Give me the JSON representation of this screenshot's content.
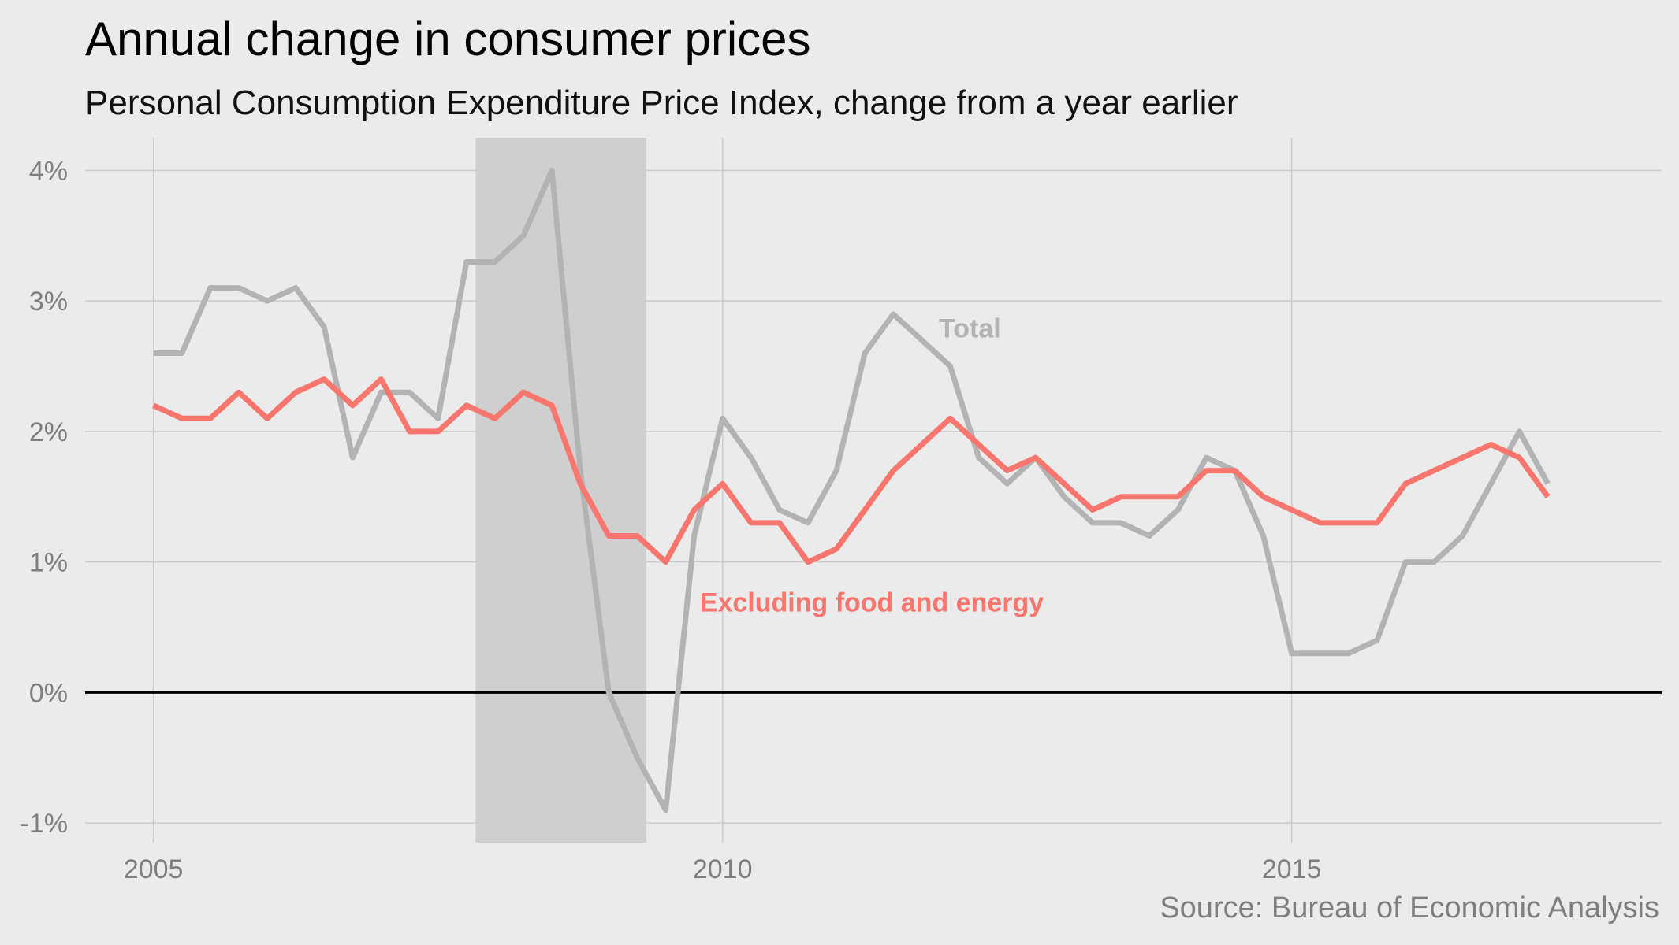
{
  "chart_data": {
    "type": "line",
    "title": "Annual change in consumer prices",
    "subtitle": "Personal Consumption Expenditure Price Index, change from a year earlier",
    "source": "Source: Bureau of Economic Analysis",
    "xlabel": "",
    "ylabel": "",
    "xlim": [
      2004.4,
      2018.25
    ],
    "ylim": [
      -1.15,
      4.25
    ],
    "x_ticks": [
      2005,
      2010,
      2015
    ],
    "x_tick_labels": [
      "2005",
      "2010",
      "2015"
    ],
    "y_ticks": [
      -1,
      0,
      1,
      2,
      3,
      4
    ],
    "y_tick_labels": [
      "-1%",
      "0%",
      "1%",
      "2%",
      "3%",
      "4%"
    ],
    "grid": true,
    "zero_line": true,
    "shaded_region": {
      "x0": 2007.83,
      "x1": 2009.33,
      "color": "#cfcfcf"
    },
    "x": [
      2005.0,
      2005.25,
      2005.5,
      2005.75,
      2006.0,
      2006.25,
      2006.5,
      2006.75,
      2007.0,
      2007.25,
      2007.5,
      2007.75,
      2008.0,
      2008.25,
      2008.5,
      2008.75,
      2009.0,
      2009.25,
      2009.5,
      2009.75,
      2010.0,
      2010.25,
      2010.5,
      2010.75,
      2011.0,
      2011.25,
      2011.5,
      2011.75,
      2012.0,
      2012.25,
      2012.5,
      2012.75,
      2013.0,
      2013.25,
      2013.5,
      2013.75,
      2014.0,
      2014.25,
      2014.5,
      2014.75,
      2015.0,
      2015.25,
      2015.5,
      2015.75,
      2016.0,
      2016.25,
      2016.5,
      2016.75,
      2017.0,
      2017.25
    ],
    "series": [
      {
        "name": "Total",
        "color": "#b3b3b3",
        "values": [
          2.6,
          2.6,
          3.1,
          3.1,
          3.0,
          3.1,
          2.8,
          1.8,
          2.3,
          2.3,
          2.1,
          3.3,
          3.3,
          3.5,
          4.0,
          1.7,
          0.0,
          -0.5,
          -0.9,
          1.2,
          2.1,
          1.8,
          1.4,
          1.3,
          1.7,
          2.6,
          2.9,
          2.7,
          2.5,
          1.8,
          1.6,
          1.8,
          1.5,
          1.3,
          1.3,
          1.2,
          1.4,
          1.8,
          1.7,
          1.2,
          0.3,
          0.3,
          0.3,
          0.4,
          1.0,
          1.0,
          1.2,
          1.6,
          2.0,
          1.6
        ]
      },
      {
        "name": "Excluding food and energy",
        "color": "#f8766d",
        "values": [
          2.2,
          2.1,
          2.1,
          2.3,
          2.1,
          2.3,
          2.4,
          2.2,
          2.4,
          2.0,
          2.0,
          2.2,
          2.1,
          2.3,
          2.2,
          1.6,
          1.2,
          1.2,
          1.0,
          1.4,
          1.6,
          1.3,
          1.3,
          1.0,
          1.1,
          1.4,
          1.7,
          1.9,
          2.1,
          1.9,
          1.7,
          1.8,
          1.6,
          1.4,
          1.5,
          1.5,
          1.5,
          1.7,
          1.7,
          1.5,
          1.4,
          1.3,
          1.3,
          1.3,
          1.6,
          1.7,
          1.8,
          1.9,
          1.8,
          1.5
        ]
      }
    ]
  }
}
